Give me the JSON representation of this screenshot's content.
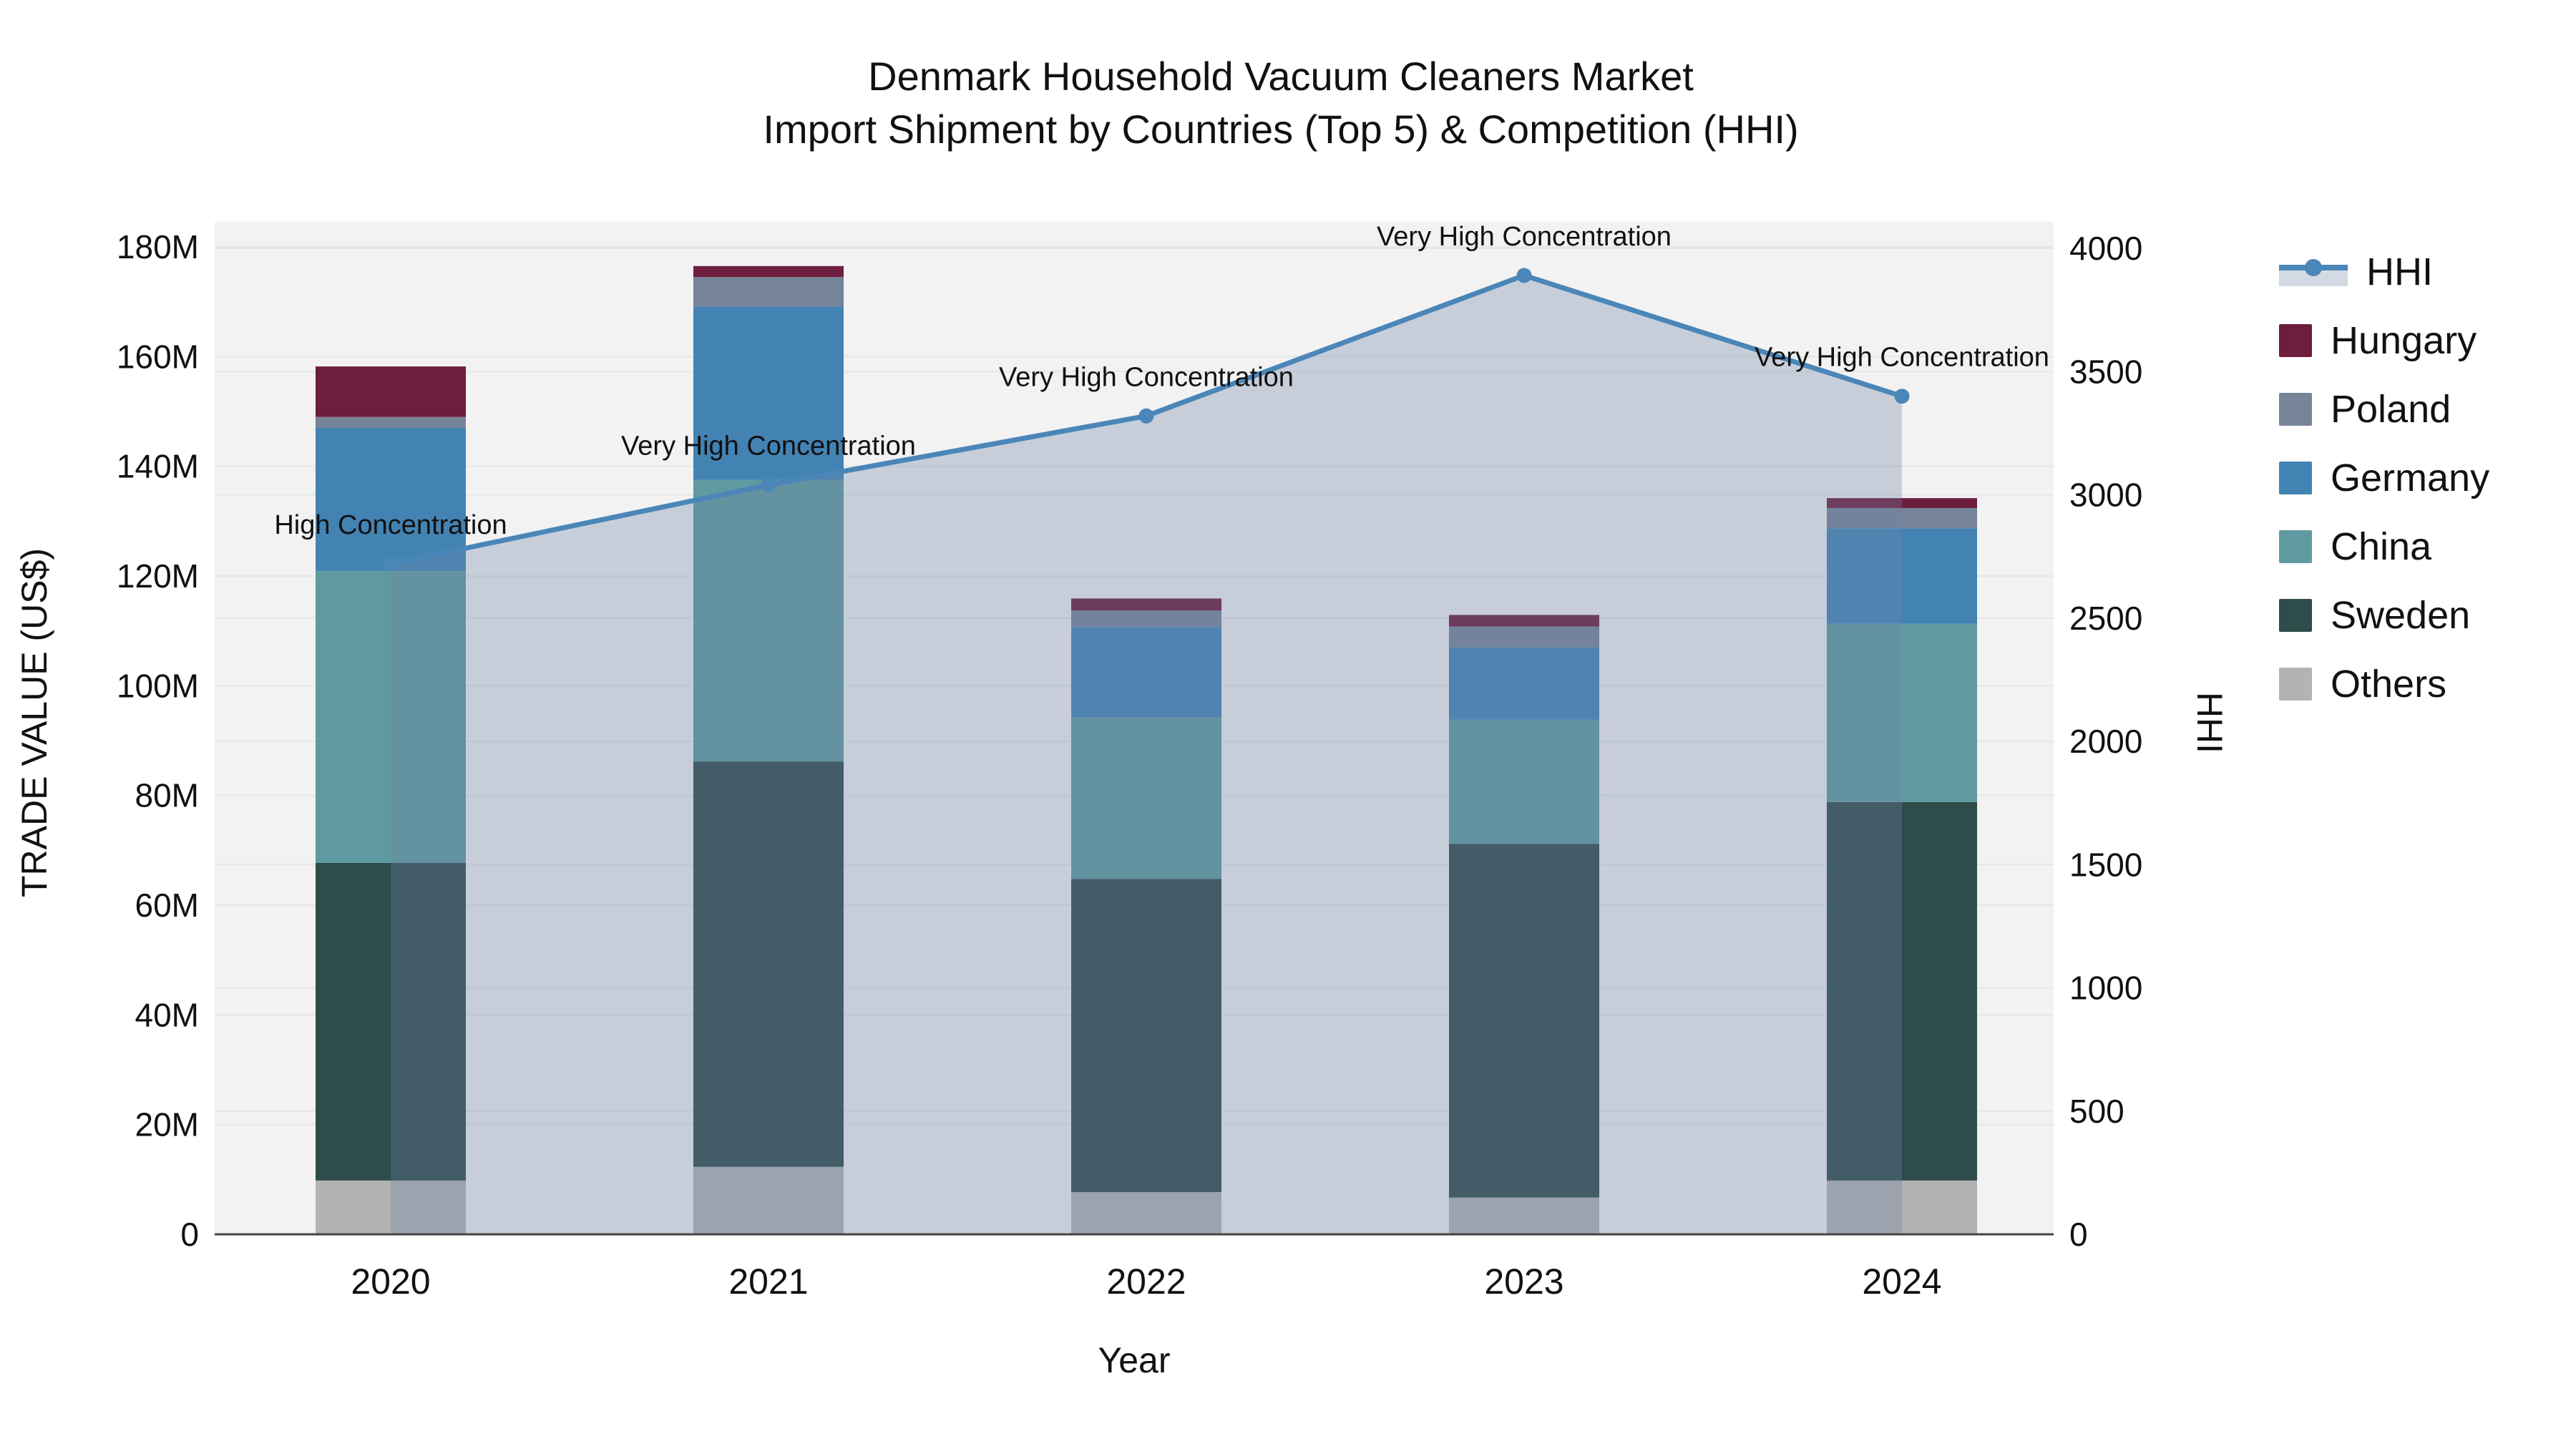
{
  "title": {
    "line1": "Denmark Household Vacuum Cleaners Market",
    "line2": "Import Shipment by Countries (Top 5) & Competition (HHI)"
  },
  "axes": {
    "x_title": "Year",
    "y_left_title": "TRADE VALUE (US$)",
    "y_right_title": "HHI",
    "y_left_ticks": [
      "0",
      "20M",
      "40M",
      "60M",
      "80M",
      "100M",
      "120M",
      "140M",
      "160M",
      "180M"
    ],
    "y_right_ticks": [
      "0",
      "500",
      "1000",
      "1500",
      "2000",
      "2500",
      "3000",
      "3500",
      "4000"
    ]
  },
  "legend": {
    "items": [
      {
        "id": "hhi",
        "label": "HHI",
        "type": "line",
        "color": "#4a86b8",
        "fill": "#d4dae3"
      },
      {
        "id": "hungary",
        "label": "Hungary",
        "type": "box",
        "color": "#6d1d3d"
      },
      {
        "id": "poland",
        "label": "Poland",
        "type": "box",
        "color": "#76849a"
      },
      {
        "id": "germany",
        "label": "Germany",
        "type": "box",
        "color": "#4383b4"
      },
      {
        "id": "china",
        "label": "China",
        "type": "box",
        "color": "#5f9aa0"
      },
      {
        "id": "sweden",
        "label": "Sweden",
        "type": "box",
        "color": "#2e4c4a"
      },
      {
        "id": "others",
        "label": "Others",
        "type": "box",
        "color": "#b3b3b3"
      }
    ]
  },
  "chart_data": {
    "type": "bar",
    "subtype": "stacked-bar-with-line-overlay",
    "categories": [
      "2020",
      "2021",
      "2022",
      "2023",
      "2024"
    ],
    "bar_value_unit": "M US$ (trade value, left axis)",
    "series": [
      {
        "name": "Others",
        "color": "#b3b3b3",
        "values": [
          9.8,
          12.3,
          7.7,
          6.7,
          9.8
        ]
      },
      {
        "name": "Sweden",
        "color": "#2e4c4a",
        "values": [
          57.9,
          73.9,
          57.1,
          64.5,
          69.0
        ]
      },
      {
        "name": "China",
        "color": "#5f9aa0",
        "values": [
          53.2,
          51.3,
          29.5,
          22.6,
          32.5
        ]
      },
      {
        "name": "Germany",
        "color": "#4383b4",
        "values": [
          26.1,
          31.6,
          16.4,
          13.2,
          17.4
        ]
      },
      {
        "name": "Poland",
        "color": "#76849a",
        "values": [
          2.0,
          5.4,
          3.0,
          3.8,
          3.7
        ]
      },
      {
        "name": "Hungary",
        "color": "#6d1d3d",
        "values": [
          9.2,
          2.0,
          2.2,
          2.1,
          1.8
        ]
      }
    ],
    "bar_totals": [
      158.2,
      176.5,
      115.9,
      112.9,
      134.2
    ],
    "line_series": {
      "name": "HHI",
      "axis": "right",
      "color": "#4a86b8",
      "fill_color": "rgba(110,130,165,0.32)",
      "values": [
        2720,
        3040,
        3320,
        3890,
        3400
      ]
    },
    "annotations": [
      {
        "category": "2020",
        "text": "High Concentration"
      },
      {
        "category": "2021",
        "text": "Very High Concentration"
      },
      {
        "category": "2022",
        "text": "Very High Concentration"
      },
      {
        "category": "2023",
        "text": "Very High Concentration"
      },
      {
        "category": "2024",
        "text": "Very High Concentration"
      }
    ],
    "xlabel": "Year",
    "ylabel_left": "TRADE VALUE (US$)",
    "ylabel_right": "HHI",
    "ylim_left": [
      0,
      185
    ],
    "ylim_right": [
      0,
      4110
    ],
    "grid": true,
    "legend_position": "right",
    "plot_background": "#f2f2f2",
    "gridline_color": "#e4e6e5"
  }
}
